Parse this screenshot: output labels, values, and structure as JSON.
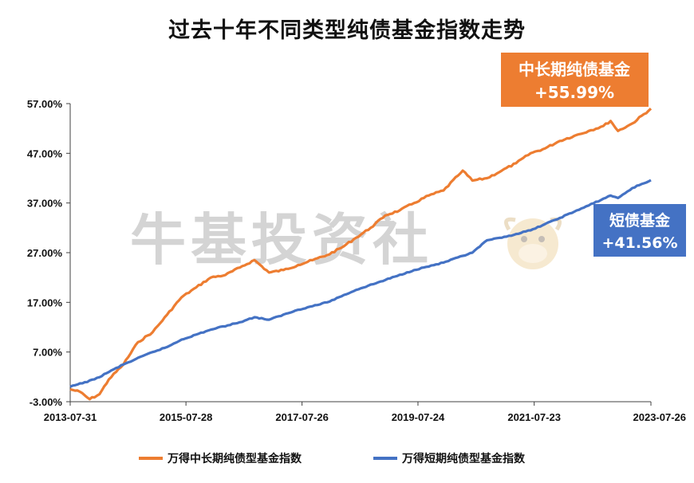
{
  "chart_data": {
    "type": "line",
    "title": "过去十年不同类型纯债基金指数走势",
    "xlabel": "",
    "ylabel": "",
    "x_ticks": [
      "2013-07-31",
      "2015-07-28",
      "2017-07-26",
      "2019-07-24",
      "2021-07-23",
      "2023-07-26"
    ],
    "y_ticks": [
      "57.00%",
      "47.00%",
      "37.00%",
      "27.00%",
      "17.00%",
      "7.00%",
      "-3.00%"
    ],
    "ylim": [
      -3,
      57
    ],
    "xlim": [
      "2013-07-31",
      "2023-07-26"
    ],
    "grid": false,
    "legend_position": "bottom",
    "series": [
      {
        "name": "万得中长期纯债型基金指数",
        "color": "#ed7d31",
        "x": [
          "2013-07-31",
          "2013-09-30",
          "2013-11-30",
          "2014-01-31",
          "2014-03-31",
          "2014-06-30",
          "2014-09-30",
          "2014-12-31",
          "2015-03-31",
          "2015-06-30",
          "2015-09-30",
          "2015-12-31",
          "2016-03-31",
          "2016-06-30",
          "2016-09-30",
          "2016-12-31",
          "2017-03-31",
          "2017-06-30",
          "2017-09-30",
          "2017-12-31",
          "2018-03-31",
          "2018-06-30",
          "2018-09-30",
          "2018-12-31",
          "2019-03-31",
          "2019-06-30",
          "2019-09-30",
          "2019-12-31",
          "2020-03-31",
          "2020-04-30",
          "2020-06-30",
          "2020-09-30",
          "2020-12-31",
          "2021-03-31",
          "2021-06-30",
          "2021-09-30",
          "2021-12-31",
          "2022-03-31",
          "2022-06-30",
          "2022-09-30",
          "2022-11-15",
          "2022-12-31",
          "2023-03-31",
          "2023-07-26"
        ],
        "values": [
          -0.5,
          -1,
          -2.5,
          -1.5,
          1.5,
          4.5,
          9,
          11,
          14.5,
          18,
          20,
          22,
          22.5,
          24,
          25.5,
          23,
          23.5,
          24.5,
          25.5,
          26.5,
          28,
          30,
          32,
          34.5,
          35.5,
          37,
          38.5,
          39.5,
          42.5,
          43.5,
          41.5,
          42,
          43.5,
          45,
          47,
          48,
          49.5,
          50.5,
          51.5,
          52.5,
          53.5,
          51.5,
          53,
          56
        ]
      },
      {
        "name": "万得短期纯债型基金指数",
        "color": "#4472c4",
        "x": [
          "2013-07-31",
          "2013-12-31",
          "2014-06-30",
          "2014-12-31",
          "2015-03-31",
          "2015-06-30",
          "2015-12-31",
          "2016-06-30",
          "2016-09-30",
          "2016-12-31",
          "2017-06-30",
          "2017-12-31",
          "2018-06-30",
          "2018-12-31",
          "2019-06-30",
          "2019-12-31",
          "2020-06-30",
          "2020-09-30",
          "2020-12-31",
          "2021-06-30",
          "2021-12-31",
          "2022-06-30",
          "2022-11-15",
          "2022-12-31",
          "2023-03-31",
          "2023-07-26"
        ],
        "values": [
          0,
          1.5,
          4.5,
          7,
          8,
          9.5,
          11.5,
          13,
          14,
          13.5,
          15.5,
          17,
          19.5,
          21.5,
          23.5,
          25,
          27,
          29.5,
          30,
          31.5,
          34,
          36.5,
          38.5,
          38,
          40,
          41.6
        ]
      }
    ],
    "annotations": [
      {
        "series": "万得中长期纯债型基金指数",
        "name": "中长期纯债基金",
        "value": "+55.99%",
        "color": "#ed7d31"
      },
      {
        "series": "万得短期纯债型基金指数",
        "name": "短债基金",
        "value": "+41.56%",
        "color": "#4472c4"
      }
    ]
  },
  "watermark": {
    "text": "牛基投资社"
  },
  "colors": {
    "axis": "#404040",
    "text": "#111111",
    "watermark": "#d4d4d4"
  }
}
